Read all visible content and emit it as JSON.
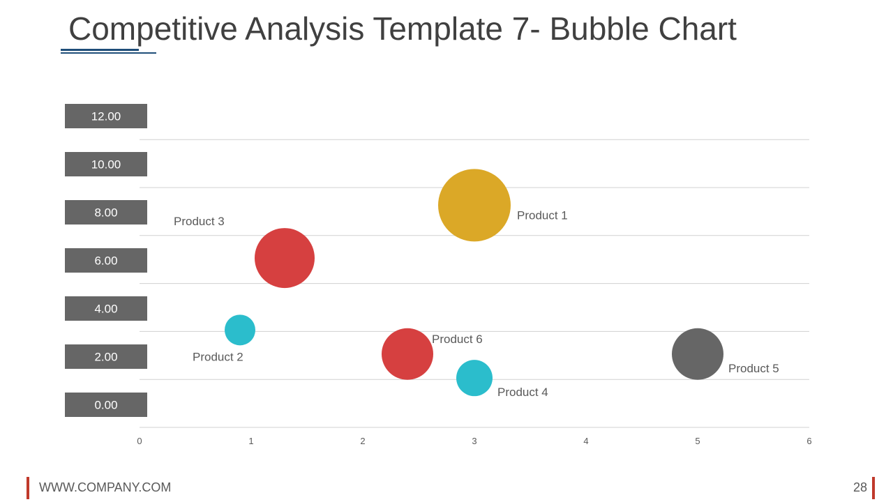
{
  "title": "Competitive Analysis Template 7- Bubble Chart",
  "footer": {
    "url": "WWW.COMPANY.COM",
    "page_number": "28"
  },
  "colors": {
    "accent": "#1f4e79",
    "footer_accent": "#c0392b",
    "axis_label_bg": "#666666"
  },
  "chart_data": {
    "type": "scatter",
    "title": "",
    "xlabel": "",
    "ylabel": "",
    "xlim": [
      0,
      6
    ],
    "ylim": [
      0,
      12
    ],
    "x_ticks": [
      "0",
      "1",
      "2",
      "3",
      "4",
      "5",
      "6"
    ],
    "y_ticks": [
      "0.00",
      "2.00",
      "4.00",
      "6.00",
      "8.00",
      "10.00",
      "12.00"
    ],
    "grid": true,
    "legend": "none",
    "series": [
      {
        "name": "Product 1",
        "x": 3,
        "y": 9.2,
        "size": 52,
        "color": "#dba827",
        "label_side": "right"
      },
      {
        "name": "Product 3",
        "x": 1.3,
        "y": 7,
        "size": 43,
        "color": "#d64040",
        "label_side": "upper-left"
      },
      {
        "name": "Product 2",
        "x": 0.9,
        "y": 4,
        "size": 22,
        "color": "#2bbdcc",
        "label_side": "lower-left"
      },
      {
        "name": "Product 6",
        "x": 2.4,
        "y": 3,
        "size": 37,
        "color": "#d64040",
        "label_side": "upper-right"
      },
      {
        "name": "Product 4",
        "x": 3,
        "y": 2,
        "size": 26,
        "color": "#2bbdcc",
        "label_side": "lower-right"
      },
      {
        "name": "Product 5",
        "x": 5,
        "y": 3,
        "size": 37,
        "color": "#666666",
        "label_side": "lower-right"
      }
    ]
  }
}
